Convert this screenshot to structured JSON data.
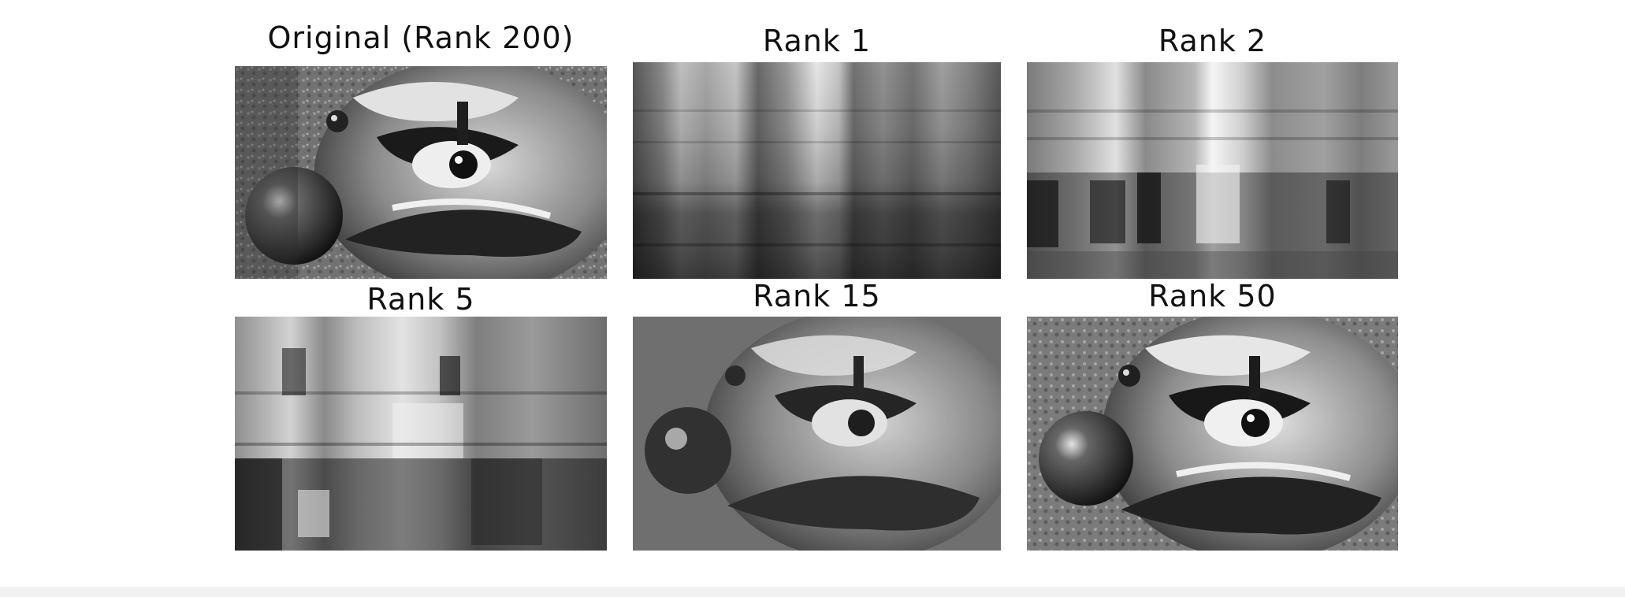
{
  "figure": {
    "panels": [
      {
        "id": "original",
        "title": "Original (Rank 200)",
        "rank": 200,
        "image": "clown face photo, full detail"
      },
      {
        "id": "rank1",
        "title": "Rank 1",
        "rank": 1,
        "image": "rank-1 approximation: vertical and horizontal band pattern"
      },
      {
        "id": "rank2",
        "title": "Rank 2",
        "rank": 2,
        "image": "rank-2 approximation: blocky band pattern"
      },
      {
        "id": "rank5",
        "title": "Rank 5",
        "rank": 5,
        "image": "rank-5 approximation: rough blocky face"
      },
      {
        "id": "rank15",
        "title": "Rank 15",
        "rank": 15,
        "image": "rank-15 approximation: recognizable clown face"
      },
      {
        "id": "rank50",
        "title": "Rank 50",
        "rank": 50,
        "image": "rank-50 approximation: near-original clown face"
      }
    ]
  }
}
